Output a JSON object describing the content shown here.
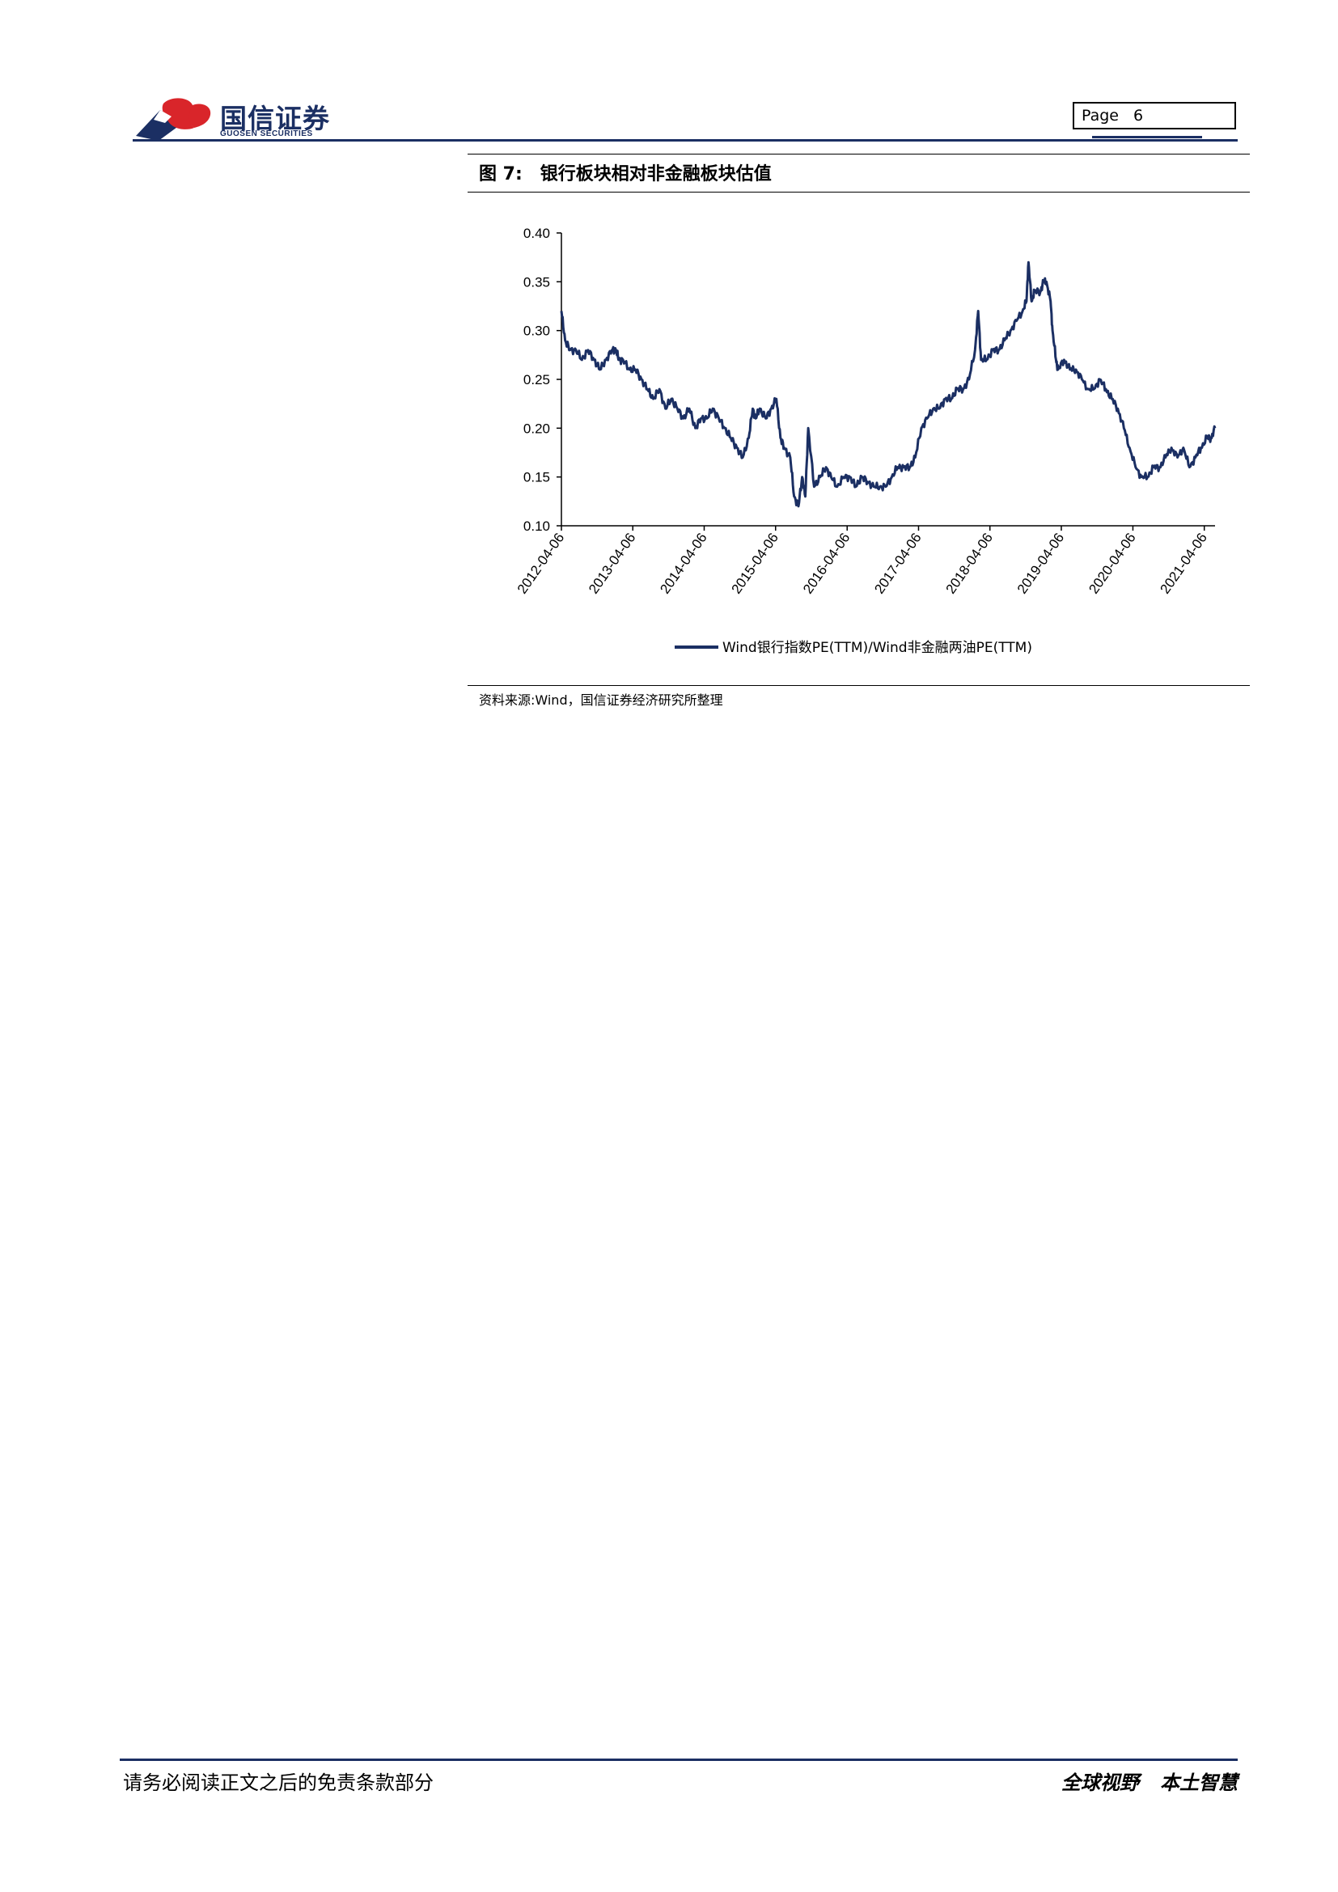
{
  "header": {
    "logo_cn": "国信证券",
    "logo_en": "GUOSEN SECURITIES",
    "page_label": "Page",
    "page_number": "6",
    "brand_color": "#1b2f63",
    "logo_red": "#d9252a"
  },
  "figure": {
    "label": "图 7:",
    "title": "银行板块相对非金融板块估值",
    "source": "资料来源:Wind，国信证券经济研究所整理"
  },
  "chart_data": {
    "type": "line",
    "title": "",
    "xlabel": "",
    "ylabel": "",
    "ylim": [
      0.1,
      0.4
    ],
    "yticks": [
      "0.10",
      "0.15",
      "0.20",
      "0.25",
      "0.30",
      "0.35",
      "0.40"
    ],
    "xticks": [
      "2012-04-06",
      "2013-04-06",
      "2014-04-06",
      "2015-04-06",
      "2016-04-06",
      "2017-04-06",
      "2018-04-06",
      "2019-04-06",
      "2020-04-06",
      "2021-04-06"
    ],
    "xlim": [
      "2012-04-06",
      "2021-05-31"
    ],
    "grid": false,
    "legend_position": "bottom",
    "series": [
      {
        "name": "Wind银行指数PE(TTM)/Wind非金融两油PE(TTM)",
        "color": "#1b2f63",
        "x": [
          "2012-04-06",
          "2012-04-25",
          "2012-05-20",
          "2012-06-20",
          "2012-07-20",
          "2012-08-20",
          "2012-09-20",
          "2012-10-20",
          "2012-11-20",
          "2012-12-20",
          "2013-01-10",
          "2013-01-25",
          "2013-02-15",
          "2013-03-20",
          "2013-04-20",
          "2013-05-20",
          "2013-06-20",
          "2013-07-20",
          "2013-08-20",
          "2013-09-20",
          "2013-10-20",
          "2013-11-20",
          "2013-12-20",
          "2014-01-20",
          "2014-02-20",
          "2014-03-20",
          "2014-04-20",
          "2014-05-20",
          "2014-06-20",
          "2014-07-20",
          "2014-08-20",
          "2014-09-20",
          "2014-10-20",
          "2014-11-20",
          "2014-12-10",
          "2014-12-25",
          "2015-01-15",
          "2015-02-15",
          "2015-03-15",
          "2015-04-10",
          "2015-05-01",
          "2015-05-20",
          "2015-06-20",
          "2015-07-10",
          "2015-08-01",
          "2015-08-20",
          "2015-09-05",
          "2015-09-20",
          "2015-10-20",
          "2015-11-20",
          "2015-12-20",
          "2016-01-15",
          "2016-02-15",
          "2016-03-20",
          "2016-04-20",
          "2016-05-20",
          "2016-06-20",
          "2016-07-20",
          "2016-08-20",
          "2016-09-20",
          "2016-10-20",
          "2016-11-20",
          "2016-12-20",
          "2017-01-20",
          "2017-02-20",
          "2017-03-20",
          "2017-04-20",
          "2017-05-20",
          "2017-06-20",
          "2017-07-20",
          "2017-08-20",
          "2017-09-20",
          "2017-10-20",
          "2017-11-20",
          "2017-12-20",
          "2018-01-20",
          "2018-02-05",
          "2018-02-20",
          "2018-03-20",
          "2018-04-20",
          "2018-05-20",
          "2018-06-20",
          "2018-07-20",
          "2018-08-20",
          "2018-09-20",
          "2018-10-10",
          "2018-10-20",
          "2018-11-05",
          "2018-11-20",
          "2018-12-20",
          "2019-01-05",
          "2019-01-20",
          "2019-02-10",
          "2019-02-20",
          "2019-03-10",
          "2019-03-20",
          "2019-04-20",
          "2019-05-20",
          "2019-06-20",
          "2019-07-20",
          "2019-08-20",
          "2019-09-20",
          "2019-10-20",
          "2019-11-20",
          "2019-12-20",
          "2020-01-20",
          "2020-02-20",
          "2020-03-20",
          "2020-04-20",
          "2020-05-20",
          "2020-06-20",
          "2020-07-20",
          "2020-08-20",
          "2020-09-20",
          "2020-10-20",
          "2020-11-20",
          "2020-12-20",
          "2021-01-20",
          "2021-02-20",
          "2021-03-20",
          "2021-04-20",
          "2021-05-10",
          "2021-05-31"
        ],
        "values": [
          0.32,
          0.29,
          0.28,
          0.28,
          0.27,
          0.28,
          0.27,
          0.26,
          0.27,
          0.28,
          0.28,
          0.27,
          0.27,
          0.26,
          0.26,
          0.25,
          0.24,
          0.23,
          0.24,
          0.22,
          0.23,
          0.22,
          0.21,
          0.22,
          0.2,
          0.21,
          0.21,
          0.22,
          0.21,
          0.2,
          0.19,
          0.18,
          0.17,
          0.19,
          0.22,
          0.21,
          0.22,
          0.21,
          0.22,
          0.23,
          0.19,
          0.18,
          0.17,
          0.13,
          0.12,
          0.15,
          0.13,
          0.2,
          0.14,
          0.15,
          0.16,
          0.15,
          0.14,
          0.15,
          0.15,
          0.14,
          0.15,
          0.145,
          0.14,
          0.14,
          0.14,
          0.15,
          0.16,
          0.16,
          0.16,
          0.17,
          0.2,
          0.21,
          0.22,
          0.22,
          0.23,
          0.23,
          0.24,
          0.24,
          0.25,
          0.28,
          0.32,
          0.27,
          0.27,
          0.28,
          0.28,
          0.29,
          0.3,
          0.31,
          0.32,
          0.33,
          0.37,
          0.33,
          0.34,
          0.34,
          0.35,
          0.35,
          0.33,
          0.3,
          0.27,
          0.26,
          0.27,
          0.26,
          0.26,
          0.25,
          0.24,
          0.24,
          0.25,
          0.24,
          0.23,
          0.22,
          0.2,
          0.18,
          0.16,
          0.15,
          0.15,
          0.16,
          0.16,
          0.17,
          0.18,
          0.17,
          0.18,
          0.16,
          0.17,
          0.18,
          0.19,
          0.19,
          0.2
        ]
      }
    ]
  },
  "footer": {
    "disclaimer": "请务必阅读正文之后的免责条款部分",
    "slogan_1": "全球视野",
    "slogan_2": "本土智慧"
  }
}
